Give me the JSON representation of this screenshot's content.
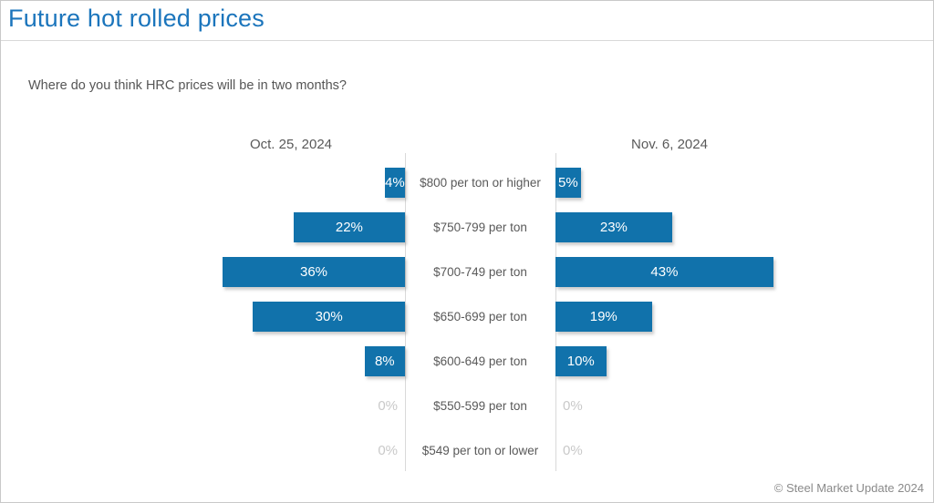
{
  "header": {
    "title": "Future hot rolled prices"
  },
  "question": "Where do you think HRC prices will be in two months?",
  "footer": {
    "credit": "© Steel Market Update 2024"
  },
  "colors": {
    "title": "#1b75bc",
    "bar": "#1172ab",
    "zero_label": "#c9c9c9",
    "category_text": "#595959",
    "divider": "#d9d9d9",
    "footer_text": "#8a8a8a"
  },
  "chart_data": {
    "type": "bar",
    "subtype": "butterfly",
    "title": "Future hot rolled prices",
    "question": "Where do you think HRC prices will be in two months?",
    "categories": [
      "$800 per ton or higher",
      "$750-799 per ton",
      "$700-749 per ton",
      "$650-699 per ton",
      "$600-649 per ton",
      "$550-599 per ton",
      "$549 per ton or lower"
    ],
    "series": [
      {
        "name": "Oct. 25, 2024",
        "side": "left",
        "values": [
          4,
          22,
          36,
          30,
          8,
          0,
          0
        ]
      },
      {
        "name": "Nov. 6, 2024",
        "side": "right",
        "values": [
          5,
          23,
          43,
          19,
          10,
          0,
          0
        ]
      }
    ],
    "value_suffix": "%",
    "max_value": 45,
    "bar_color": "#1172ab",
    "grid": false,
    "legend_position": "top"
  }
}
